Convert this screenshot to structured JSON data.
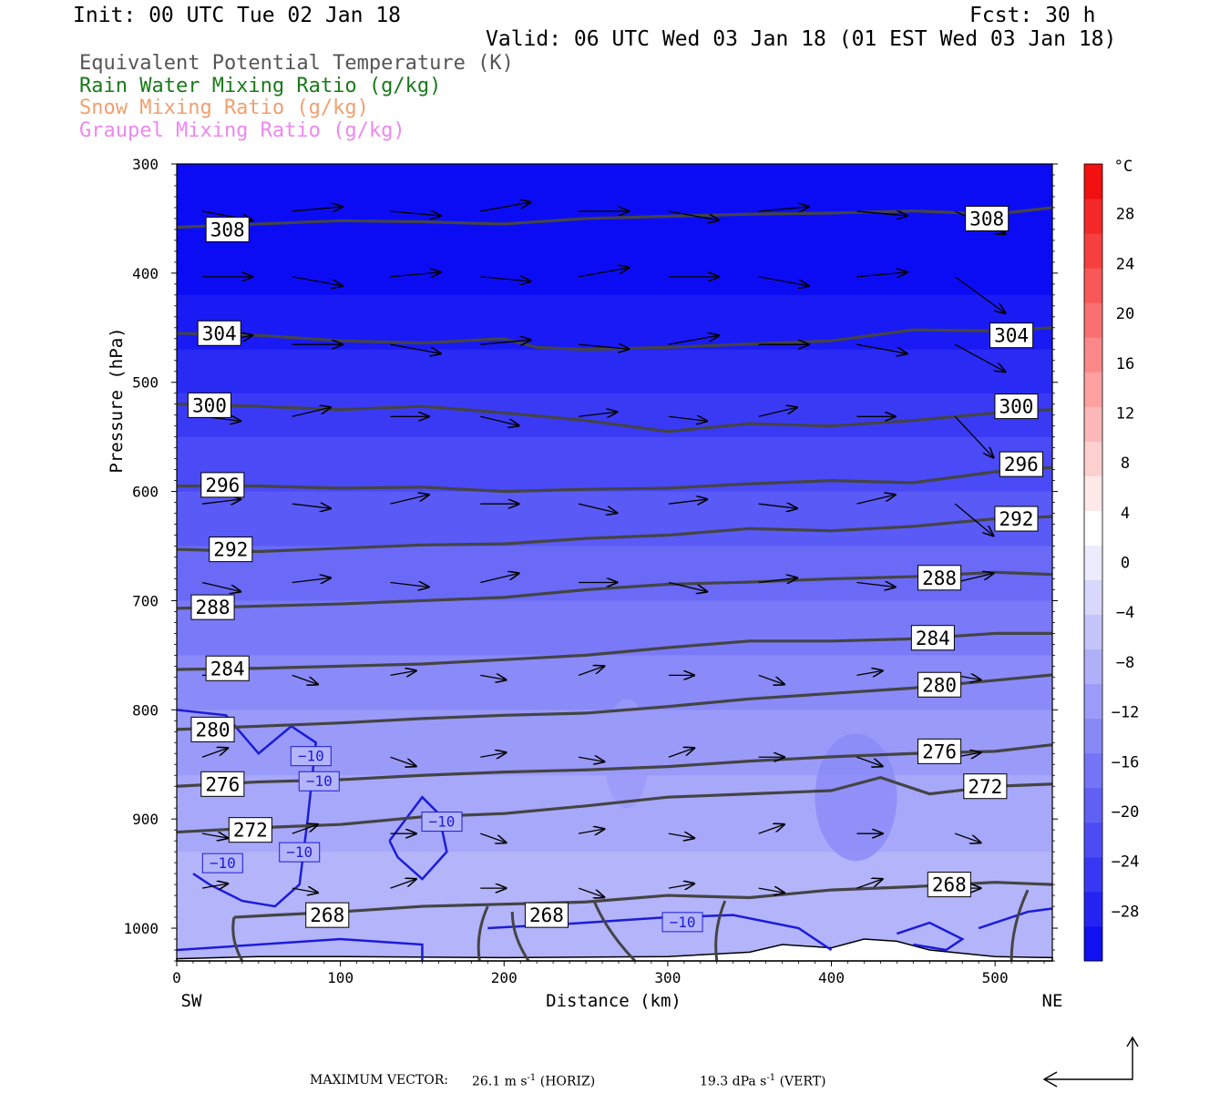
{
  "header": {
    "init": "Init: 00 UTC Tue 02 Jan 18",
    "fcst": "Fcst:   30 h",
    "valid": "Valid: 06 UTC Wed 03 Jan 18 (01 EST Wed 03 Jan 18)"
  },
  "legend": [
    {
      "label": "Equivalent Potential Temperature (K)",
      "color": "#555555"
    },
    {
      "label": "Rain Water Mixing Ratio (g/kg)",
      "color": "#1a7a1a"
    },
    {
      "label": "Snow Mixing Ratio (g/kg)",
      "color": "#f0a070"
    },
    {
      "label": "Graupel Mixing Ratio (g/kg)",
      "color": "#ee88ee"
    }
  ],
  "footer": {
    "vector_prefix": "MAXIMUM VECTOR:",
    "horiz_value": "26.1 m s",
    "horiz_unit": "(HORIZ)",
    "vert_value": "19.3 dPa s",
    "vert_unit": "(VERT)",
    "exponent": "-1"
  },
  "chart_data": {
    "type": "cross-section",
    "xlabel": "Distance (km)",
    "ylabel": "Pressure (hPa)",
    "xlim": [
      0,
      535
    ],
    "ylim": [
      1030,
      300
    ],
    "x_ticks": [
      0,
      100,
      200,
      300,
      400,
      500
    ],
    "y_ticks": [
      300,
      400,
      500,
      600,
      700,
      800,
      900,
      1000
    ],
    "x_end_labels": [
      "SW",
      "NE"
    ],
    "colorbar": {
      "unit": "°C",
      "tick_labels": [
        "28",
        "24",
        "20",
        "16",
        "12",
        "8",
        "4",
        "0",
        "−4",
        "−8",
        "−12",
        "−16",
        "−20",
        "−24",
        "−28"
      ],
      "tick_values": [
        28,
        24,
        20,
        16,
        12,
        8,
        4,
        0,
        -4,
        -8,
        -12,
        -16,
        -20,
        -24,
        -28
      ],
      "range": [
        -32,
        32
      ],
      "colors": [
        "#1010f0",
        "#2424f2",
        "#3838f4",
        "#4c4cf5",
        "#6060f5",
        "#7474f6",
        "#8888f7",
        "#9c9cf8",
        "#b0b0f9",
        "#c4c4fa",
        "#d8d8fc",
        "#ececfe",
        "#ffffff",
        "#fee8e8",
        "#fdd0d0",
        "#fcb8b8",
        "#fca0a0",
        "#fb8888",
        "#fa7070",
        "#f85858",
        "#f64040",
        "#f42828",
        "#f21010"
      ]
    },
    "theta_e_contours": [
      {
        "value": 308,
        "label": "308",
        "points": [
          [
            0,
            358
          ],
          [
            50,
            355
          ],
          [
            100,
            352
          ],
          [
            150,
            353
          ],
          [
            200,
            355
          ],
          [
            250,
            350
          ],
          [
            300,
            348
          ],
          [
            350,
            346
          ],
          [
            400,
            345
          ],
          [
            450,
            343
          ],
          [
            500,
            346
          ],
          [
            535,
            340
          ]
        ],
        "label_positions": [
          [
            31,
            360
          ],
          [
            495,
            350
          ]
        ]
      },
      {
        "value": 304,
        "label": "304",
        "points": [
          [
            0,
            455
          ],
          [
            50,
            457
          ],
          [
            100,
            462
          ],
          [
            150,
            464
          ],
          [
            200,
            460
          ],
          [
            220,
            468
          ],
          [
            250,
            470
          ],
          [
            300,
            468
          ],
          [
            350,
            465
          ],
          [
            400,
            462
          ],
          [
            450,
            452
          ],
          [
            500,
            453
          ],
          [
            535,
            450
          ]
        ],
        "label_positions": [
          [
            26,
            455
          ],
          [
            510,
            457
          ]
        ]
      },
      {
        "value": 300,
        "label": "300",
        "points": [
          [
            0,
            520
          ],
          [
            50,
            522
          ],
          [
            100,
            525
          ],
          [
            150,
            522
          ],
          [
            200,
            528
          ],
          [
            250,
            535
          ],
          [
            300,
            545
          ],
          [
            350,
            538
          ],
          [
            400,
            540
          ],
          [
            450,
            535
          ],
          [
            500,
            528
          ],
          [
            535,
            525
          ]
        ],
        "label_positions": [
          [
            20,
            521
          ],
          [
            513,
            522
          ]
        ]
      },
      {
        "value": 296,
        "label": "296",
        "points": [
          [
            0,
            595
          ],
          [
            50,
            595
          ],
          [
            100,
            597
          ],
          [
            150,
            596
          ],
          [
            200,
            600
          ],
          [
            250,
            598
          ],
          [
            300,
            597
          ],
          [
            350,
            593
          ],
          [
            400,
            590
          ],
          [
            450,
            592
          ],
          [
            500,
            582
          ],
          [
            535,
            578
          ]
        ],
        "label_positions": [
          [
            28,
            594
          ],
          [
            516,
            575
          ]
        ]
      },
      {
        "value": 292,
        "label": "292",
        "points": [
          [
            0,
            653
          ],
          [
            50,
            655
          ],
          [
            100,
            652
          ],
          [
            150,
            649
          ],
          [
            200,
            648
          ],
          [
            250,
            643
          ],
          [
            300,
            640
          ],
          [
            350,
            634
          ],
          [
            400,
            636
          ],
          [
            450,
            632
          ],
          [
            500,
            625
          ],
          [
            535,
            623
          ]
        ],
        "label_positions": [
          [
            33,
            653
          ],
          [
            513,
            625
          ]
        ]
      },
      {
        "value": 288,
        "label": "288",
        "points": [
          [
            0,
            707
          ],
          [
            50,
            705
          ],
          [
            100,
            703
          ],
          [
            150,
            700
          ],
          [
            200,
            697
          ],
          [
            250,
            690
          ],
          [
            300,
            685
          ],
          [
            350,
            683
          ],
          [
            400,
            680
          ],
          [
            450,
            678
          ],
          [
            500,
            674
          ],
          [
            535,
            676
          ]
        ],
        "label_positions": [
          [
            22,
            706
          ],
          [
            466,
            679
          ]
        ]
      },
      {
        "value": 284,
        "label": "284",
        "points": [
          [
            0,
            763
          ],
          [
            50,
            762
          ],
          [
            100,
            760
          ],
          [
            150,
            758
          ],
          [
            200,
            754
          ],
          [
            250,
            750
          ],
          [
            300,
            743
          ],
          [
            350,
            737
          ],
          [
            400,
            737
          ],
          [
            450,
            735
          ],
          [
            500,
            730
          ],
          [
            535,
            730
          ]
        ],
        "label_positions": [
          [
            31,
            762
          ],
          [
            462,
            734
          ]
        ]
      },
      {
        "value": 280,
        "label": "280",
        "points": [
          [
            0,
            818
          ],
          [
            50,
            815
          ],
          [
            100,
            812
          ],
          [
            150,
            808
          ],
          [
            200,
            805
          ],
          [
            250,
            803
          ],
          [
            300,
            797
          ],
          [
            350,
            790
          ],
          [
            400,
            785
          ],
          [
            450,
            780
          ],
          [
            500,
            773
          ],
          [
            535,
            768
          ]
        ],
        "label_positions": [
          [
            22,
            818
          ],
          [
            466,
            777
          ]
        ]
      },
      {
        "value": 276,
        "label": "276",
        "points": [
          [
            0,
            870
          ],
          [
            50,
            866
          ],
          [
            100,
            864
          ],
          [
            150,
            860
          ],
          [
            200,
            857
          ],
          [
            250,
            855
          ],
          [
            300,
            852
          ],
          [
            350,
            847
          ],
          [
            400,
            843
          ],
          [
            450,
            840
          ],
          [
            500,
            838
          ],
          [
            535,
            832
          ]
        ],
        "label_positions": [
          [
            28,
            868
          ],
          [
            466,
            838
          ]
        ]
      },
      {
        "value": 272,
        "label": "272",
        "points": [
          [
            0,
            912
          ],
          [
            50,
            908
          ],
          [
            100,
            905
          ],
          [
            150,
            898
          ],
          [
            200,
            895
          ],
          [
            250,
            888
          ],
          [
            300,
            880
          ],
          [
            350,
            877
          ],
          [
            400,
            874
          ],
          [
            430,
            862
          ],
          [
            460,
            877
          ],
          [
            500,
            870
          ],
          [
            535,
            868
          ]
        ],
        "label_positions": [
          [
            45,
            910
          ],
          [
            494,
            870
          ]
        ]
      },
      {
        "value": 268,
        "label": "268",
        "points": [
          [
            35,
            990
          ],
          [
            60,
            988
          ],
          [
            100,
            985
          ],
          [
            150,
            980
          ],
          [
            200,
            978
          ],
          [
            250,
            976
          ],
          [
            300,
            970
          ],
          [
            350,
            972
          ],
          [
            400,
            965
          ],
          [
            450,
            962
          ],
          [
            500,
            958
          ],
          [
            535,
            960
          ]
        ],
        "label_positions": [
          [
            92,
            988
          ],
          [
            226,
            988
          ],
          [
            472,
            960
          ]
        ]
      }
    ],
    "isotherm_contours": [
      {
        "value": -10,
        "label": "−10",
        "label_positions": [
          [
            82,
            842
          ],
          [
            87,
            865
          ],
          [
            75,
            930
          ],
          [
            28,
            940
          ],
          [
            162,
            902
          ],
          [
            309,
            994
          ]
        ]
      }
    ],
    "wind_vectors": true,
    "max_vector": {
      "horizontal": 26.1,
      "horizontal_unit": "m s-1",
      "vertical": 19.3,
      "vertical_unit": "dPa s-1"
    }
  }
}
